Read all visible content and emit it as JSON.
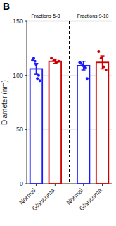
{
  "chart_data": {
    "type": "bar",
    "title": "B",
    "y_label": "Diameter (nm)",
    "categories": [
      "Normal",
      "Glaucoma",
      "Normal",
      "Glaucoma"
    ],
    "values": [
      106,
      113,
      109,
      112
    ],
    "errors": [
      5,
      2,
      4,
      6
    ],
    "colors": [
      "#1a1aff",
      "#cc0000",
      "#1a1aff",
      "#cc0000"
    ],
    "points": [
      [
        114,
        116,
        113,
        110,
        97,
        100,
        95
      ],
      [
        116,
        114,
        112,
        113
      ],
      [
        112,
        111,
        109,
        108,
        107,
        97
      ],
      [
        122,
        116,
        108,
        105
      ]
    ],
    "annotations": [
      "Fractions 5-8",
      "Fractions 9-10"
    ],
    "ylim": [
      0,
      150
    ],
    "yticks": [
      0,
      50,
      100,
      150
    ]
  }
}
